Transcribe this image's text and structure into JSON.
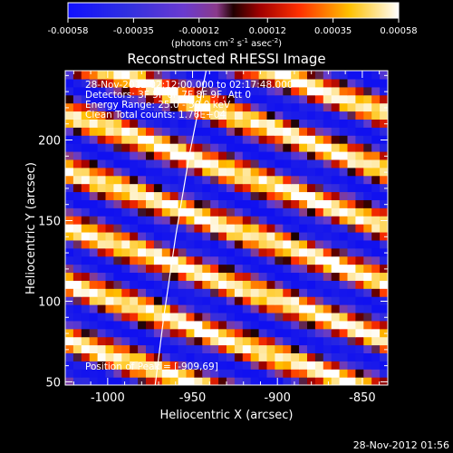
{
  "colorbar": {
    "tick_labels": [
      "-0.00058",
      "-0.00035",
      "-0.00012",
      "0.00012",
      "0.00035",
      "0.00058"
    ],
    "tick_values": [
      -0.00058,
      -0.00035,
      -0.00012,
      0.00012,
      0.00035,
      0.00058
    ],
    "range": [
      -0.00058,
      0.00058
    ],
    "units": "(photons cm",
    "units_sup1": "-2",
    "units_mid": " s",
    "units_sup2": "-1",
    "units_end": " asec",
    "units_sup3": "-2",
    "units_close": ")"
  },
  "annotations": {
    "time_range": "28-Nov-2012 02:12:00.000 to 02:17:48.000",
    "detectors": "Detectors: 3F 5F 6F 7F 8F 9F, Att 0",
    "energy": "Energy Range: 25.0 - 50.0 keV",
    "algorithm": "Clean     Total counts: 1.76E+04",
    "peak": "Position of Peak = [-909,69]"
  },
  "footer": {
    "timestamp": "28-Nov-2012 01:56"
  },
  "colors": {
    "background": "#000000",
    "text": "#ffffff",
    "limb_line": "#ffffff"
  },
  "chart_data": {
    "type": "heatmap",
    "title": "Reconstructed RHESSI Image",
    "xlabel": "Heliocentric X (arcsec)",
    "ylabel": "Heliocentric Y (arcsec)",
    "xlim": [
      -1025,
      -835
    ],
    "ylim": [
      48,
      243
    ],
    "x_ticks": [
      -1000,
      -950,
      -900,
      -850
    ],
    "x_tick_labels": [
      "-1000",
      "-950",
      "-900",
      "-850"
    ],
    "y_ticks": [
      50,
      100,
      150,
      200
    ],
    "y_tick_labels": [
      "50",
      "100",
      "150",
      "200"
    ],
    "colormap": "blue-purple-red-yellow-white",
    "pattern": {
      "description": "diagonal fringe stripes descending left-to-right",
      "slope_y_per_x": -0.37,
      "period_arcsec": 35,
      "peak_position": [
        -909,
        69
      ]
    },
    "limb_curve": {
      "points": [
        [
          -972,
          48
        ],
        [
          -967,
          90
        ],
        [
          -960,
          140
        ],
        [
          -952,
          190
        ],
        [
          -942,
          243
        ]
      ]
    }
  }
}
